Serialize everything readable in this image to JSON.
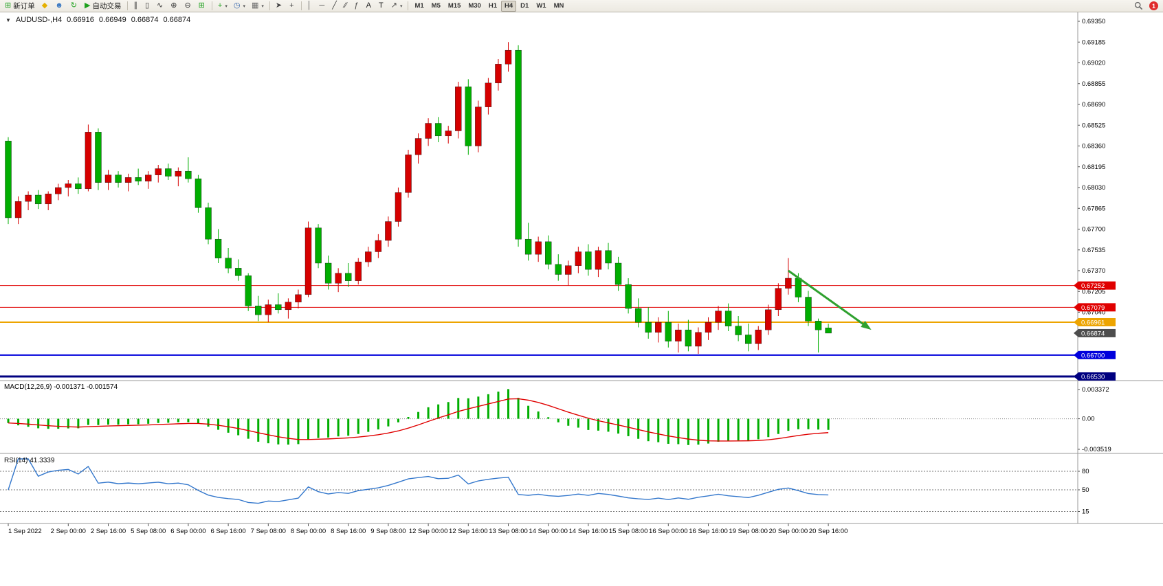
{
  "toolbar": {
    "items": [
      {
        "type": "button",
        "name": "new-order-button",
        "icon": "new-order-icon",
        "glyph": "⊞",
        "glyph_color": "#1fa11f",
        "label": "新订单"
      },
      {
        "type": "icon-button",
        "name": "metaeditor-button",
        "icon": "metaeditor-icon",
        "glyph": "◆",
        "glyph_color": "#e5b000"
      },
      {
        "type": "icon-button",
        "name": "community-button",
        "icon": "community-user-icon",
        "glyph": "☻",
        "glyph_color": "#3a78c2"
      },
      {
        "type": "icon-button",
        "name": "refresh-button",
        "icon": "refresh-icon",
        "glyph": "↻",
        "glyph_color": "#1fa11f"
      },
      {
        "type": "button",
        "name": "auto-trading-button",
        "icon": "auto-trading-play-icon",
        "glyph": "▶",
        "glyph_color": "#1fa11f",
        "label": "自动交易"
      },
      {
        "type": "separator"
      },
      {
        "type": "icon-button",
        "name": "bar-chart-button",
        "icon": "bar-chart-icon",
        "glyph": "∥",
        "glyph_color": "#333333"
      },
      {
        "type": "icon-button",
        "name": "candlestick-chart-button",
        "icon": "candlestick-icon",
        "glyph": "▯",
        "glyph_color": "#333333"
      },
      {
        "type": "icon-button",
        "name": "line-chart-button",
        "icon": "line-chart-icon",
        "glyph": "∿",
        "glyph_color": "#333333"
      },
      {
        "type": "icon-button",
        "name": "zoom-in-button",
        "icon": "zoom-in-icon",
        "glyph": "⊕",
        "glyph_color": "#333333"
      },
      {
        "type": "icon-button",
        "name": "zoom-out-button",
        "icon": "zoom-out-icon",
        "glyph": "⊖",
        "glyph_color": "#333333"
      },
      {
        "type": "icon-button",
        "name": "tile-windows-button",
        "icon": "tile-windows-icon",
        "glyph": "⊞",
        "glyph_color": "#1fa11f"
      },
      {
        "type": "separator"
      },
      {
        "type": "icon-button",
        "name": "indicators-button",
        "icon": "indicators-plus-icon",
        "glyph": "+",
        "glyph_color": "#1fa11f",
        "caret": true
      },
      {
        "type": "icon-button",
        "name": "periods-button",
        "icon": "clock-icon",
        "glyph": "◷",
        "glyph_color": "#2a5da8",
        "caret": true
      },
      {
        "type": "icon-button",
        "name": "templates-button",
        "icon": "template-icon",
        "glyph": "▦",
        "glyph_color": "#6a6a6a",
        "caret": true
      },
      {
        "type": "separator"
      },
      {
        "type": "icon-button",
        "name": "cursor-button",
        "icon": "cursor-icon",
        "glyph": "➤",
        "glyph_color": "#444444"
      },
      {
        "type": "icon-button",
        "name": "crosshair-button",
        "icon": "crosshair-icon",
        "glyph": "+",
        "glyph_color": "#444444"
      },
      {
        "type": "separator"
      },
      {
        "type": "icon-button",
        "name": "vertical-line-button",
        "icon": "vertical-line-icon",
        "glyph": "│",
        "glyph_color": "#444444"
      },
      {
        "type": "icon-button",
        "name": "horizontal-line-button",
        "icon": "horizontal-line-icon",
        "glyph": "─",
        "glyph_color": "#444444"
      },
      {
        "type": "icon-button",
        "name": "trendline-button",
        "icon": "trendline-icon",
        "glyph": "╱",
        "glyph_color": "#444444"
      },
      {
        "type": "icon-button",
        "name": "channel-button",
        "icon": "channel-icon",
        "glyph": "∕∕",
        "glyph_color": "#444444"
      },
      {
        "type": "icon-button",
        "name": "fibonacci-button",
        "icon": "fibonacci-icon",
        "glyph": "ƒ",
        "glyph_color": "#444444"
      },
      {
        "type": "icon-button",
        "name": "text-button",
        "icon": "text-icon",
        "glyph": "A",
        "glyph_color": "#222222"
      },
      {
        "type": "icon-button",
        "name": "text-label-button",
        "icon": "text-label-icon",
        "glyph": "T",
        "glyph_color": "#222222"
      },
      {
        "type": "icon-button",
        "name": "arrows-button",
        "icon": "arrow-object-icon",
        "glyph": "↗",
        "glyph_color": "#444444",
        "caret": true
      },
      {
        "type": "separator"
      }
    ],
    "timeframes": [
      "M1",
      "M5",
      "M15",
      "M30",
      "H1",
      "H4",
      "D1",
      "W1",
      "MN"
    ],
    "active_timeframe": "H4",
    "right": {
      "notification_count": "1"
    }
  },
  "chart_data": {
    "type": "candlestick",
    "title": "AUDUSD-,H4",
    "ohlc_header": {
      "open": "0.66916",
      "high": "0.66949",
      "low": "0.66874",
      "close": "0.66874"
    },
    "colors": {
      "up": "#d60000",
      "down": "#00ae00",
      "macd_histogram": "#00ae00",
      "macd_signal": "#e00000",
      "rsi_line": "#3377cc"
    },
    "y_axis": {
      "labels": [
        "0.69350",
        "0.69185",
        "0.69020",
        "0.68855",
        "0.68690",
        "0.68525",
        "0.68360",
        "0.68195",
        "0.68030",
        "0.67865",
        "0.67700",
        "0.67535",
        "0.67370",
        "0.67205",
        "0.67040"
      ]
    },
    "x_axis": {
      "labels": [
        "1 Sep 2022",
        "2 Sep 00:00",
        "2 Sep 16:00",
        "5 Sep 08:00",
        "6 Sep 00:00",
        "6 Sep 16:00",
        "7 Sep 08:00",
        "8 Sep 00:00",
        "8 Sep 16:00",
        "9 Sep 08:00",
        "12 Sep 00:00",
        "12 Sep 16:00",
        "13 Sep 08:00",
        "14 Sep 00:00",
        "14 Sep 16:00",
        "15 Sep 08:00",
        "16 Sep 00:00",
        "16 Sep 16:00",
        "19 Sep 08:00",
        "20 Sep 00:00",
        "20 Sep 16:00"
      ],
      "indices": [
        0,
        6,
        10,
        14,
        18,
        22,
        26,
        30,
        34,
        38,
        42,
        46,
        50,
        54,
        58,
        62,
        66,
        70,
        74,
        78,
        82
      ]
    },
    "candles": [
      [
        0.684,
        0.6843,
        0.6774,
        0.6779
      ],
      [
        0.6779,
        0.6796,
        0.6774,
        0.6792
      ],
      [
        0.6792,
        0.68,
        0.6785,
        0.6797
      ],
      [
        0.6797,
        0.6801,
        0.6786,
        0.679
      ],
      [
        0.679,
        0.68,
        0.6785,
        0.6798
      ],
      [
        0.6798,
        0.6806,
        0.6793,
        0.6803
      ],
      [
        0.6803,
        0.6809,
        0.6796,
        0.6806
      ],
      [
        0.6806,
        0.6811,
        0.6798,
        0.6802
      ],
      [
        0.6802,
        0.6853,
        0.68,
        0.6847
      ],
      [
        0.6847,
        0.685,
        0.6801,
        0.6807
      ],
      [
        0.6807,
        0.6817,
        0.6801,
        0.6813
      ],
      [
        0.6813,
        0.6816,
        0.6803,
        0.6807
      ],
      [
        0.6807,
        0.6814,
        0.68,
        0.6811
      ],
      [
        0.6811,
        0.6818,
        0.6805,
        0.6808
      ],
      [
        0.6808,
        0.6816,
        0.6802,
        0.6813
      ],
      [
        0.6813,
        0.6821,
        0.6807,
        0.6818
      ],
      [
        0.6818,
        0.6822,
        0.6809,
        0.6812
      ],
      [
        0.6812,
        0.6819,
        0.6804,
        0.6816
      ],
      [
        0.6816,
        0.6827,
        0.6807,
        0.681
      ],
      [
        0.681,
        0.6813,
        0.6783,
        0.6787
      ],
      [
        0.6787,
        0.6791,
        0.6758,
        0.6762
      ],
      [
        0.6762,
        0.677,
        0.6743,
        0.6747
      ],
      [
        0.6747,
        0.6755,
        0.6735,
        0.6739
      ],
      [
        0.6739,
        0.6746,
        0.6729,
        0.6733
      ],
      [
        0.6733,
        0.6735,
        0.6705,
        0.6709
      ],
      [
        0.6709,
        0.6717,
        0.6697,
        0.6702
      ],
      [
        0.6702,
        0.6714,
        0.6696,
        0.671
      ],
      [
        0.671,
        0.6719,
        0.6703,
        0.6706
      ],
      [
        0.6706,
        0.6715,
        0.6699,
        0.6712
      ],
      [
        0.6712,
        0.6722,
        0.6707,
        0.6718
      ],
      [
        0.6718,
        0.6776,
        0.6716,
        0.6771
      ],
      [
        0.6771,
        0.6774,
        0.6739,
        0.6743
      ],
      [
        0.6743,
        0.6749,
        0.6722,
        0.6727
      ],
      [
        0.6727,
        0.6739,
        0.672,
        0.6735
      ],
      [
        0.6735,
        0.6743,
        0.6724,
        0.6729
      ],
      [
        0.6729,
        0.6747,
        0.6726,
        0.6744
      ],
      [
        0.6744,
        0.6756,
        0.674,
        0.6752
      ],
      [
        0.6752,
        0.6766,
        0.6747,
        0.6761
      ],
      [
        0.6761,
        0.678,
        0.6756,
        0.6776
      ],
      [
        0.6776,
        0.6803,
        0.6772,
        0.6799
      ],
      [
        0.6799,
        0.6833,
        0.6795,
        0.6829
      ],
      [
        0.6829,
        0.6846,
        0.6822,
        0.6842
      ],
      [
        0.6842,
        0.6858,
        0.6836,
        0.6854
      ],
      [
        0.6854,
        0.6859,
        0.6839,
        0.6844
      ],
      [
        0.6844,
        0.6852,
        0.6838,
        0.6848
      ],
      [
        0.6848,
        0.6887,
        0.6842,
        0.6883
      ],
      [
        0.6883,
        0.6889,
        0.6829,
        0.6836
      ],
      [
        0.6836,
        0.6872,
        0.6831,
        0.6867
      ],
      [
        0.6867,
        0.689,
        0.6861,
        0.6886
      ],
      [
        0.6886,
        0.6905,
        0.688,
        0.6901
      ],
      [
        0.6901,
        0.69185,
        0.6895,
        0.6912
      ],
      [
        0.6912,
        0.6916,
        0.6756,
        0.6762
      ],
      [
        0.6762,
        0.6775,
        0.6745,
        0.675
      ],
      [
        0.675,
        0.6764,
        0.6744,
        0.676
      ],
      [
        0.676,
        0.6765,
        0.6738,
        0.6742
      ],
      [
        0.6742,
        0.675,
        0.6729,
        0.6734
      ],
      [
        0.6734,
        0.6745,
        0.6725,
        0.6741
      ],
      [
        0.6741,
        0.6756,
        0.6735,
        0.6752
      ],
      [
        0.6752,
        0.6758,
        0.6733,
        0.6738
      ],
      [
        0.6738,
        0.6756,
        0.6732,
        0.6753
      ],
      [
        0.6753,
        0.6759,
        0.6738,
        0.6743
      ],
      [
        0.6743,
        0.6748,
        0.6721,
        0.6726
      ],
      [
        0.6726,
        0.6731,
        0.6703,
        0.6707
      ],
      [
        0.6707,
        0.6715,
        0.6692,
        0.6696
      ],
      [
        0.6696,
        0.6708,
        0.6683,
        0.6688
      ],
      [
        0.6688,
        0.67,
        0.668,
        0.6696
      ],
      [
        0.6696,
        0.6705,
        0.6676,
        0.6681
      ],
      [
        0.6681,
        0.6695,
        0.6672,
        0.669
      ],
      [
        0.669,
        0.6698,
        0.6673,
        0.6677
      ],
      [
        0.6677,
        0.6692,
        0.6671,
        0.6688
      ],
      [
        0.6688,
        0.67,
        0.6682,
        0.6696
      ],
      [
        0.6696,
        0.6709,
        0.669,
        0.6705
      ],
      [
        0.6705,
        0.6711,
        0.6689,
        0.6693
      ],
      [
        0.6693,
        0.6701,
        0.6681,
        0.6686
      ],
      [
        0.6686,
        0.6695,
        0.6673,
        0.6679
      ],
      [
        0.6679,
        0.6693,
        0.6674,
        0.669
      ],
      [
        0.669,
        0.671,
        0.6686,
        0.6706
      ],
      [
        0.6706,
        0.6727,
        0.6701,
        0.6723
      ],
      [
        0.6723,
        0.6747,
        0.6718,
        0.6731
      ],
      [
        0.6731,
        0.6735,
        0.6712,
        0.6716
      ],
      [
        0.6716,
        0.6721,
        0.6693,
        0.6697
      ],
      [
        0.6697,
        0.6699,
        0.6672,
        0.669
      ],
      [
        0.66916,
        0.66949,
        0.66874,
        0.66874
      ]
    ],
    "levels": [
      {
        "price": 0.67252,
        "label": "0.67252",
        "color": "#e00000",
        "width": 1
      },
      {
        "price": 0.67079,
        "label": "0.67079",
        "color": "#e00000",
        "width": 1
      },
      {
        "price": 0.66961,
        "label": "0.66961",
        "color": "#eda400",
        "width": 2
      },
      {
        "price": 0.667,
        "label": "0.66700",
        "color": "#0000dc",
        "width": 2
      },
      {
        "price": 0.6653,
        "label": "0.66530",
        "color": "#000080",
        "width": 3
      }
    ],
    "current_price": {
      "value": 0.66874,
      "label": "0.66874",
      "color": "#4d4d4d"
    },
    "trend_arrow": {
      "from_index": 78,
      "from_price": 0.6737,
      "to_index": 86.3,
      "to_price": 0.669,
      "color": "#2fa12f"
    },
    "indicators": {
      "macd": {
        "label": "MACD(12,26,9)",
        "values_text": "-0.001371 -0.001574",
        "fast": 12,
        "slow": 26,
        "signal": 9,
        "axis_labels": [
          "0.003372",
          "0.00",
          "-0.003519"
        ],
        "axis_values": [
          0.003372,
          0,
          -0.003519
        ]
      },
      "rsi": {
        "label": "RSI(14)",
        "value_text": "41.3339",
        "period": 14,
        "levels": [
          80,
          50,
          15
        ]
      }
    }
  }
}
